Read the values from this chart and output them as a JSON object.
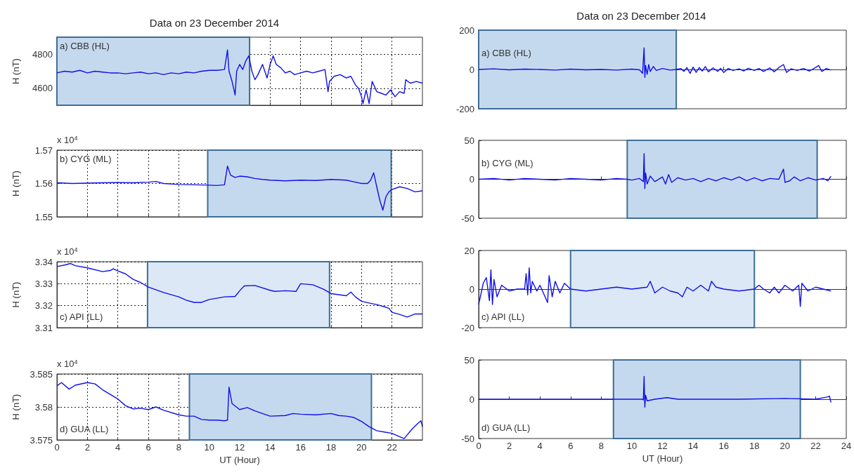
{
  "chart_data": [
    {
      "type": "line",
      "title": "Data on 23 December 2014",
      "ylabel": "H (nT)",
      "annotations": [
        "a) CBB (HL)"
      ],
      "color": "#1010e8",
      "marker": "none",
      "line_style": "solid",
      "grid": true,
      "tick_labels": "y",
      "xlim": [
        0,
        24
      ],
      "xticks": [
        0,
        2,
        4,
        6,
        8,
        10,
        12,
        14,
        16,
        18,
        20,
        22
      ],
      "ylim": [
        4500,
        4900
      ],
      "yticks": [
        4600,
        4800
      ],
      "bands": [
        {
          "axis": "x",
          "from": 0,
          "to": 12.65,
          "color": "#c5d9ee"
        }
      ],
      "x": [
        0,
        0.5,
        1,
        1.5,
        2,
        2.5,
        3,
        3.5,
        4,
        4.5,
        5,
        5.5,
        6,
        6.5,
        7,
        7.5,
        8,
        8.5,
        9,
        9.5,
        10,
        10.5,
        11,
        11.2,
        11.3,
        11.5,
        11.7,
        11.8,
        12,
        12.2,
        12.4,
        12.6,
        12.8,
        13,
        13.2,
        13.5,
        13.8,
        14,
        14.2,
        14.4,
        14.7,
        15,
        15.3,
        15.6,
        16,
        16.4,
        16.8,
        17.2,
        17.6,
        17.8,
        17.9,
        18.2,
        18.6,
        19,
        19.3,
        19.6,
        19.8,
        20,
        20.1,
        20.3,
        20.5,
        20.7,
        21,
        21.3,
        21.6,
        21.9,
        22.2,
        22.5,
        22.8,
        22.9,
        23.2,
        23.6,
        24
      ],
      "values": [
        4690,
        4700,
        4695,
        4705,
        4690,
        4700,
        4695,
        4690,
        4690,
        4685,
        4690,
        4695,
        4685,
        4690,
        4680,
        4690,
        4685,
        4695,
        4690,
        4700,
        4705,
        4705,
        4710,
        4825,
        4700,
        4640,
        4560,
        4700,
        4740,
        4710,
        4760,
        4790,
        4700,
        4650,
        4680,
        4740,
        4660,
        4740,
        4790,
        4740,
        4720,
        4690,
        4700,
        4680,
        4690,
        4700,
        4690,
        4700,
        4710,
        4580,
        4640,
        4670,
        4680,
        4660,
        4670,
        4620,
        4600,
        4550,
        4510,
        4590,
        4510,
        4640,
        4580,
        4570,
        4560,
        4590,
        4550,
        4580,
        4570,
        4650,
        4630,
        4640,
        4630
      ]
    },
    {
      "type": "line",
      "title": "Data on 23 December 2014",
      "annotations": [
        "a) CBB (HL)"
      ],
      "color": "#1010e8",
      "marker": "none",
      "line_style": "solid",
      "tick_labels": "y",
      "xlim": [
        0,
        24
      ],
      "xticks": [
        0,
        8,
        16,
        24
      ],
      "ylim": [
        -200,
        200
      ],
      "yticks": [
        -200,
        0,
        200
      ],
      "bands": [
        {
          "axis": "x",
          "from": 0,
          "to": 12.9,
          "color": "#c5d9ee"
        }
      ],
      "x": [
        0,
        1,
        2,
        3,
        4,
        5,
        6,
        7,
        8,
        9,
        10,
        10.5,
        10.7,
        10.8,
        10.85,
        10.9,
        11,
        11.1,
        11.2,
        11.4,
        11.6,
        12,
        12.5,
        12.9,
        13.2,
        13.4,
        13.6,
        13.8,
        14,
        14.2,
        14.4,
        14.6,
        14.8,
        15,
        15.3,
        15.6,
        15.8,
        16,
        16.3,
        16.6,
        17,
        17.3,
        17.6,
        18,
        18.3,
        18.6,
        19,
        19.3,
        19.6,
        19.9,
        20.1,
        20.4,
        20.8,
        21.2,
        21.6,
        22,
        22.2,
        22.4,
        22.7,
        23
      ],
      "values": [
        0,
        3,
        -2,
        2,
        0,
        -3,
        2,
        -2,
        0,
        -3,
        2,
        -2,
        -20,
        110,
        -40,
        20,
        -25,
        25,
        -10,
        15,
        -5,
        5,
        -3,
        0,
        5,
        -10,
        10,
        -20,
        12,
        -15,
        10,
        -8,
        15,
        -12,
        8,
        -10,
        5,
        -15,
        5,
        -5,
        3,
        -8,
        6,
        -5,
        5,
        -10,
        8,
        -12,
        10,
        25,
        -15,
        3,
        -5,
        5,
        -8,
        10,
        20,
        -10,
        5,
        -3
      ]
    },
    {
      "type": "line",
      "ylabel": "H (nT)",
      "annotations": [
        "b) CYG (ML)",
        "x 10$^{4}$"
      ],
      "color": "#1010e8",
      "marker": "none",
      "line_style": "solid",
      "grid": true,
      "tick_labels": "y",
      "xlim": [
        0,
        24
      ],
      "xticks": [
        0,
        2,
        4,
        6,
        8,
        10,
        12,
        14,
        16,
        18,
        20,
        22
      ],
      "ylim": [
        1.55,
        1.57
      ],
      "yticks": [
        1.55,
        1.56,
        1.57
      ],
      "bands": [
        {
          "axis": "x",
          "from": 9.9,
          "to": 21.95,
          "color": "#c5d9ee"
        }
      ],
      "x": [
        0,
        1,
        2,
        3,
        4,
        5,
        6,
        6.5,
        7,
        8,
        9,
        10,
        10.5,
        11,
        11.2,
        11.4,
        11.7,
        12,
        12.5,
        13,
        13.5,
        14,
        15,
        16,
        17,
        18,
        19,
        19.5,
        20,
        20.4,
        20.6,
        20.8,
        21,
        21.2,
        21.4,
        21.6,
        21.8,
        22,
        22.5,
        23,
        23.5,
        24
      ],
      "values": [
        1.5602,
        1.56,
        1.5601,
        1.5602,
        1.5603,
        1.5602,
        1.5604,
        1.5606,
        1.56,
        1.5597,
        1.5596,
        1.5595,
        1.5594,
        1.5596,
        1.5652,
        1.5625,
        1.5618,
        1.5622,
        1.562,
        1.5615,
        1.5612,
        1.561,
        1.5608,
        1.561,
        1.5609,
        1.5612,
        1.561,
        1.5605,
        1.56,
        1.56,
        1.561,
        1.5632,
        1.559,
        1.555,
        1.552,
        1.556,
        1.5575,
        1.5582,
        1.559,
        1.5585,
        1.5575,
        1.5578
      ]
    },
    {
      "type": "line",
      "annotations": [
        "b) CYG (ML)"
      ],
      "color": "#1010e8",
      "marker": "none",
      "line_style": "solid",
      "tick_labels": "y",
      "xlim": [
        0,
        24
      ],
      "xticks": [
        0,
        8,
        16,
        24
      ],
      "ylim": [
        -50,
        50
      ],
      "yticks": [
        -50,
        0,
        50
      ],
      "bands": [
        {
          "axis": "x",
          "from": 9.7,
          "to": 22.1,
          "color": "#c5d9ee"
        }
      ],
      "x": [
        0,
        1,
        2,
        3,
        4,
        5,
        6,
        7,
        8,
        9,
        9.7,
        10,
        10.5,
        10.75,
        10.8,
        10.85,
        10.9,
        11,
        11.2,
        11.5,
        12,
        12.2,
        12.4,
        12.6,
        13,
        13.5,
        14,
        14.5,
        15,
        15.5,
        16,
        16.5,
        17,
        17.5,
        18,
        18.5,
        19,
        19.6,
        19.9,
        20,
        20.3,
        20.6,
        21,
        21.5,
        22,
        22.5,
        22.8,
        23
      ],
      "values": [
        0,
        1,
        -1,
        1,
        0,
        -1,
        1,
        0,
        -1,
        1,
        0,
        -1,
        1,
        -3,
        33,
        -12,
        8,
        -6,
        4,
        -3,
        3,
        -6,
        6,
        -4,
        2,
        -1,
        1,
        -3,
        1,
        -2,
        2,
        -1,
        3,
        -2,
        2,
        -2,
        1,
        0,
        13,
        -4,
        -2,
        3,
        -2,
        2,
        -1,
        1,
        -2,
        4
      ]
    },
    {
      "type": "line",
      "ylabel": "H (nT)",
      "annotations": [
        "c) API (LL)",
        "x 10$^{4}$"
      ],
      "color": "#1010e8",
      "marker": "none",
      "line_style": "solid",
      "grid": true,
      "tick_labels": "y",
      "xlim": [
        0,
        24
      ],
      "xticks": [
        0,
        2,
        4,
        6,
        8,
        10,
        12,
        14,
        16,
        18,
        20,
        22
      ],
      "ylim": [
        3.31,
        3.34
      ],
      "yticks": [
        3.31,
        3.32,
        3.33,
        3.34
      ],
      "bands": [
        {
          "axis": "x",
          "from": 5.95,
          "to": 17.9,
          "color": "#dce8f5"
        }
      ],
      "x": [
        0,
        0.5,
        0.9,
        1.2,
        2,
        3,
        3.5,
        3.7,
        4,
        4.5,
        5,
        5.5,
        6,
        7,
        8,
        8.5,
        9,
        9.5,
        10,
        11,
        11.7,
        12,
        12.3,
        13,
        14,
        14.3,
        15,
        15.7,
        16,
        16.8,
        17.5,
        18,
        18.5,
        19,
        19.3,
        19.6,
        20,
        20.5,
        21,
        21.5,
        21.8,
        22,
        22.5,
        23,
        23.5,
        24
      ],
      "values": [
        3.3378,
        3.3385,
        3.3392,
        3.3382,
        3.3372,
        3.3355,
        3.336,
        3.3368,
        3.3358,
        3.3345,
        3.332,
        3.3305,
        3.3285,
        3.326,
        3.324,
        3.3225,
        3.3215,
        3.3215,
        3.3228,
        3.324,
        3.3242,
        3.3268,
        3.329,
        3.3292,
        3.327,
        3.3265,
        3.3268,
        3.3265,
        3.33,
        3.3295,
        3.3275,
        3.3255,
        3.325,
        3.3245,
        3.3262,
        3.324,
        3.322,
        3.3212,
        3.3205,
        3.3195,
        3.3188,
        3.317,
        3.316,
        3.3148,
        3.3162,
        3.3162
      ]
    },
    {
      "type": "line",
      "annotations": [
        "c) API (LL)"
      ],
      "color": "#1010e8",
      "marker": "none",
      "line_style": "solid",
      "tick_labels": "y",
      "xlim": [
        0,
        24
      ],
      "xticks": [
        0,
        8,
        16,
        24
      ],
      "ylim": [
        -20,
        20
      ],
      "yticks": [
        -20,
        0,
        20
      ],
      "bands": [
        {
          "axis": "x",
          "from": 6,
          "to": 18,
          "color": "#dce8f5"
        }
      ],
      "x": [
        0,
        0.3,
        0.5,
        0.7,
        0.8,
        0.9,
        1,
        1.2,
        1.5,
        2,
        2.5,
        3,
        3.1,
        3.2,
        3.3,
        3.4,
        3.5,
        3.8,
        4,
        4.5,
        4.6,
        4.8,
        5,
        5.3,
        5.6,
        6,
        7,
        8,
        9,
        10,
        11,
        11.2,
        11.5,
        12,
        12.5,
        13,
        13.3,
        13.6,
        14,
        14.5,
        15,
        15.2,
        15.5,
        16,
        17,
        18,
        18.3,
        18.6,
        19,
        19.3,
        19.6,
        20,
        20.5,
        20.9,
        21,
        21.1,
        21.5,
        22,
        22.5,
        23
      ],
      "values": [
        -8,
        3,
        6,
        -6,
        10,
        -8,
        5,
        -4,
        2,
        -1,
        0,
        0,
        8,
        -3,
        11,
        -2,
        4,
        -1,
        2,
        -7,
        7,
        -4,
        4,
        -2,
        3,
        0,
        -1,
        0,
        1,
        0,
        1,
        4,
        -2,
        1,
        -1,
        -2,
        -4,
        1,
        -1,
        2,
        -1,
        4,
        1,
        0,
        -1,
        0,
        2,
        0,
        -2,
        1,
        -2,
        2,
        -1,
        2,
        -9,
        3,
        -1,
        1,
        0,
        -1
      ]
    },
    {
      "type": "line",
      "xlabel": "UT (Hour)",
      "ylabel": "H (nT)",
      "annotations": [
        "d) GUA (LL)",
        "x 10$^{4}$"
      ],
      "color": "#1010e8",
      "marker": "none",
      "line_style": "solid",
      "grid": true,
      "xlim": [
        0,
        24
      ],
      "xticks": [
        0,
        2,
        4,
        6,
        8,
        10,
        12,
        14,
        16,
        18,
        20,
        22
      ],
      "ylim": [
        3.575,
        3.585
      ],
      "yticks": [
        3.575,
        3.58,
        3.585
      ],
      "bands": [
        {
          "axis": "x",
          "from": 8.7,
          "to": 20.65,
          "color": "#c5d9ee"
        }
      ],
      "x": [
        0,
        0.3,
        0.8,
        1.2,
        2,
        2.5,
        3,
        4,
        4.5,
        5,
        5.5,
        6,
        6.5,
        7,
        8,
        8.5,
        9,
        9.5,
        10,
        10.5,
        11,
        11.2,
        11.3,
        11.5,
        12,
        12.5,
        13,
        14,
        15,
        15.5,
        16,
        17,
        18,
        18.5,
        19,
        19.5,
        20,
        20.5,
        21,
        21.5,
        22,
        22.5,
        22.8,
        23.3,
        23.7,
        23.9,
        24
      ],
      "values": [
        3.5832,
        3.5837,
        3.5827,
        3.5833,
        3.5837,
        3.5835,
        3.5826,
        3.5812,
        3.5802,
        3.5797,
        3.5798,
        3.5796,
        3.58,
        3.5795,
        3.5788,
        3.5786,
        3.5786,
        3.5781,
        3.578,
        3.578,
        3.5779,
        3.578,
        3.583,
        3.5805,
        3.5796,
        3.5799,
        3.5794,
        3.5786,
        3.5787,
        3.579,
        3.5789,
        3.5788,
        3.579,
        3.5787,
        3.5786,
        3.5784,
        3.5778,
        3.577,
        3.5764,
        3.5762,
        3.576,
        3.5755,
        3.5752,
        3.5766,
        3.5775,
        3.5779,
        3.577
      ]
    },
    {
      "type": "line",
      "xlabel": "UT (Hour)",
      "annotations": [
        "d) GUA (LL)"
      ],
      "color": "#1010e8",
      "marker": "none",
      "line_style": "solid",
      "xlim": [
        0,
        24
      ],
      "xticks": [
        0,
        2,
        4,
        6,
        8,
        10,
        12,
        14,
        16,
        18,
        20,
        22,
        24
      ],
      "ylim": [
        -50,
        50
      ],
      "yticks": [
        -50,
        0,
        50
      ],
      "bands": [
        {
          "axis": "x",
          "from": 8.8,
          "to": 21,
          "color": "#c5d9ee"
        }
      ],
      "x": [
        0,
        5,
        10,
        10.7,
        10.75,
        10.8,
        10.85,
        10.9,
        11,
        11.5,
        12.3,
        13,
        17,
        20,
        22,
        22.8,
        22.9,
        23
      ],
      "values": [
        0,
        0,
        0,
        0,
        -1,
        29,
        -10,
        5,
        -2,
        0,
        2,
        0,
        0,
        1,
        0,
        3,
        4,
        -4
      ]
    }
  ]
}
